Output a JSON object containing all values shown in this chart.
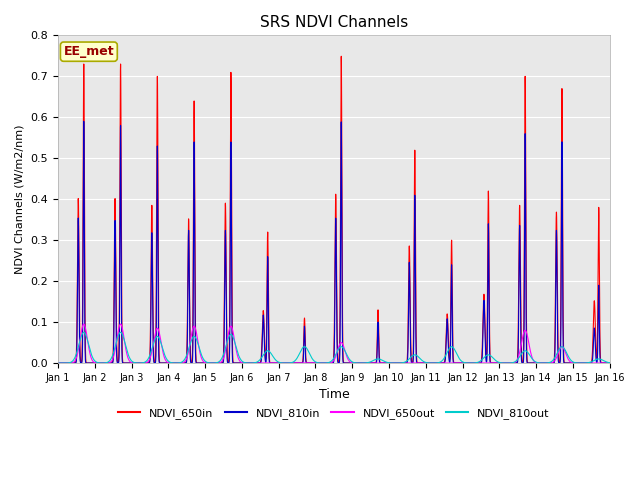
{
  "title": "SRS NDVI Channels",
  "xlabel": "Time",
  "ylabel": "NDVI Channels (W/m2/nm)",
  "ylim": [
    0.0,
    0.8
  ],
  "yticks": [
    0.0,
    0.1,
    0.2,
    0.3,
    0.4,
    0.5,
    0.6,
    0.7,
    0.8
  ],
  "xtick_labels": [
    "Jan 1",
    "Jan 2",
    "Jan 3",
    "Jan 4",
    "Jan 5",
    "Jan 6",
    "Jan 7",
    "Jan 8",
    "Jan 9",
    "Jan 10",
    "Jan 11",
    "Jan 12",
    "Jan 13",
    "Jan 14",
    "Jan 15",
    "Jan 16"
  ],
  "colors": {
    "NDVI_650in": "#FF0000",
    "NDVI_810in": "#0000CC",
    "NDVI_650out": "#FF00FF",
    "NDVI_810out": "#00CCCC"
  },
  "background_color": "#E8E8E8",
  "annotation_text": "EE_met",
  "annotation_bg": "#FFFFCC",
  "annotation_border": "#AAAA00",
  "peaks_650in": [
    0.73,
    0.73,
    0.7,
    0.64,
    0.71,
    0.32,
    0.11,
    0.75,
    0.13,
    0.52,
    0.3,
    0.42,
    0.7,
    0.67,
    0.38
  ],
  "peaks_810in": [
    0.59,
    0.58,
    0.53,
    0.54,
    0.54,
    0.26,
    0.09,
    0.59,
    0.1,
    0.41,
    0.24,
    0.34,
    0.56,
    0.54,
    0.19
  ],
  "peaks_650out": [
    0.095,
    0.095,
    0.085,
    0.09,
    0.09,
    0.0,
    0.0,
    0.05,
    0.0,
    0.0,
    0.0,
    0.0,
    0.08,
    0.04,
    0.0
  ],
  "peaks_810out": [
    0.075,
    0.075,
    0.065,
    0.065,
    0.07,
    0.03,
    0.04,
    0.04,
    0.01,
    0.02,
    0.04,
    0.02,
    0.03,
    0.04,
    0.01
  ],
  "n_days": 15,
  "pts_per_day": 500
}
